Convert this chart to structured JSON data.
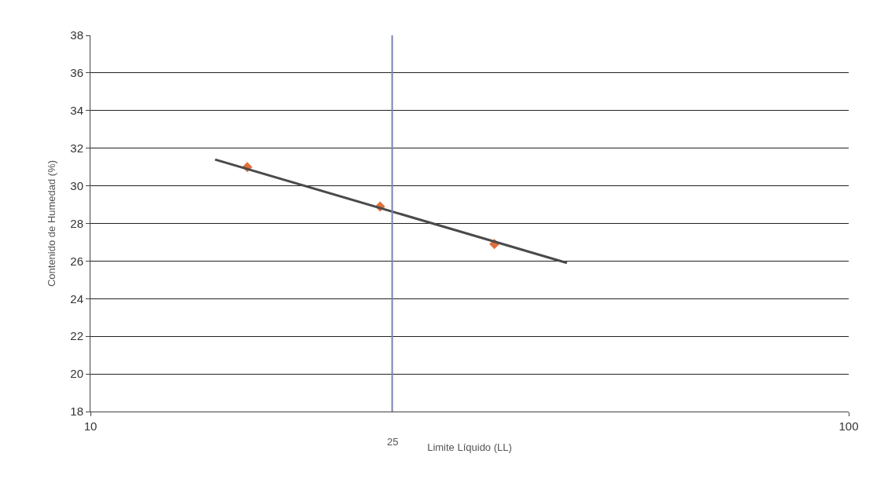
{
  "chart_data": {
    "type": "scatter",
    "xlabel": "Limite Líquido (LL)",
    "ylabel": "Contenido de Humedad (%)",
    "series": [
      {
        "color": "#e0703c",
        "marker": "diamond",
        "x": [
          16.1,
          24.1,
          34.1
        ],
        "values": [
          31.0,
          28.9,
          26.9
        ]
      },
      {
        "type": "line",
        "color": "#4a4a4a",
        "marker": "none",
        "x": [
          14.6,
          42.5
        ],
        "values": [
          31.4,
          25.9
        ]
      }
    ],
    "log": "x",
    "xlim": [
      10,
      100
    ],
    "xticks": [
      10,
      100
    ],
    "ylim": [
      18,
      38
    ],
    "yticks": [
      18,
      20,
      22,
      24,
      26,
      28,
      30,
      32,
      34,
      36,
      38
    ],
    "grid": "y",
    "ref_lines": [
      {
        "axis": "x",
        "value": 25,
        "label": "25",
        "color": "#7a80b4"
      }
    ]
  }
}
